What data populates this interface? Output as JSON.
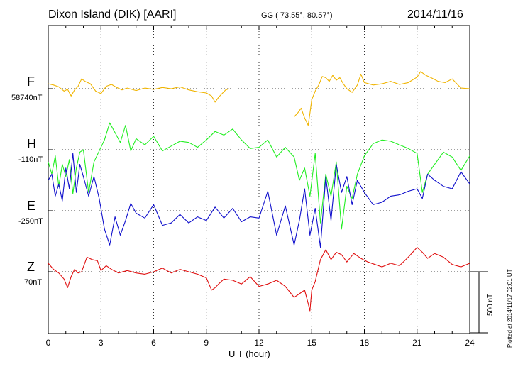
{
  "header": {
    "station": "Dixon Island (DIK)  [AARI]",
    "coordinates": "GG ( 73.55°,  80.57°)",
    "date": "2014/11/16"
  },
  "footer": {
    "plotted": "Plotted at 2014/11/17 02:01  UT"
  },
  "chart_data": {
    "type": "line",
    "title": "Dixon Island (DIK)  [AARI]",
    "xlabel": "U T (hour)",
    "xlim": [
      0,
      24
    ],
    "xticks": [
      "0",
      "3",
      "6",
      "9",
      "12",
      "15",
      "18",
      "21",
      "24"
    ],
    "grid": true,
    "scale_bar": "500 nT",
    "y_units": "nT (relative to baseline, 500 nT scale bar)",
    "series": [
      {
        "name": "F",
        "baseline": "58740nT",
        "color": "#f0b400",
        "offset_index": 0,
        "x": [
          0,
          0.3,
          0.6,
          0.9,
          1.1,
          1.3,
          1.5,
          1.7,
          1.9,
          2.1,
          2.4,
          2.7,
          3.0,
          3.3,
          3.6,
          3.9,
          4.2,
          4.5,
          5.0,
          5.5,
          6.0,
          6.5,
          7.0,
          7.5,
          8.0,
          8.5,
          9.0,
          9.3,
          9.5,
          9.7,
          9.9,
          10.1,
          10.3,
          null,
          14.0,
          14.2,
          14.4,
          14.6,
          14.8,
          14.9,
          15.0,
          15.2,
          15.4,
          15.6,
          15.8,
          16.0,
          16.2,
          16.4,
          16.6,
          16.8,
          17.0,
          17.3,
          17.6,
          17.8,
          18.0,
          18.5,
          19.0,
          19.5,
          20.0,
          20.5,
          21.0,
          21.2,
          21.5,
          21.8,
          22.2,
          22.6,
          23.0,
          23.5,
          24.0
        ],
        "y": [
          40,
          30,
          15,
          -20,
          -5,
          -60,
          -10,
          20,
          80,
          60,
          40,
          -20,
          -40,
          20,
          35,
          10,
          -10,
          5,
          -15,
          5,
          -5,
          10,
          0,
          15,
          -10,
          -25,
          -35,
          -60,
          -110,
          -70,
          -40,
          -10,
          0,
          null,
          -230,
          -200,
          -160,
          -240,
          -300,
          -200,
          -90,
          -20,
          30,
          100,
          90,
          60,
          110,
          70,
          90,
          40,
          0,
          -30,
          30,
          120,
          50,
          30,
          40,
          60,
          35,
          50,
          95,
          140,
          110,
          90,
          60,
          50,
          80,
          5,
          0
        ],
        "gap_hours": [
          10.3,
          14.0
        ]
      },
      {
        "name": "H",
        "baseline": "-110nT",
        "color": "#22ee22",
        "offset_index": 1,
        "x": [
          0,
          0.2,
          0.4,
          0.6,
          0.8,
          1.0,
          1.2,
          1.4,
          1.6,
          1.8,
          2.0,
          2.3,
          2.6,
          2.9,
          3.2,
          3.5,
          3.8,
          4.1,
          4.4,
          4.7,
          5.0,
          5.5,
          6.0,
          6.5,
          7.0,
          7.5,
          8.0,
          8.5,
          9.0,
          9.5,
          10.0,
          10.5,
          11.0,
          11.5,
          12.0,
          12.5,
          13.0,
          13.5,
          14.0,
          14.3,
          14.6,
          14.9,
          15.2,
          15.5,
          15.8,
          16.1,
          16.4,
          16.7,
          17.0,
          17.3,
          17.6,
          18.0,
          18.5,
          19.0,
          19.5,
          20.0,
          20.5,
          21.0,
          21.3,
          21.6,
          22.0,
          22.5,
          23.0,
          23.5,
          24.0
        ],
        "y": [
          -100,
          -200,
          -50,
          -300,
          -120,
          -220,
          -80,
          -360,
          -150,
          -20,
          0,
          -350,
          -100,
          -10,
          80,
          220,
          140,
          60,
          200,
          -10,
          90,
          40,
          110,
          -10,
          30,
          70,
          60,
          20,
          80,
          150,
          120,
          170,
          80,
          10,
          20,
          80,
          -60,
          20,
          -60,
          -250,
          -150,
          -380,
          -30,
          -600,
          -200,
          -380,
          -100,
          -650,
          -300,
          -400,
          -200,
          -50,
          50,
          80,
          70,
          40,
          10,
          -30,
          -350,
          -200,
          -120,
          -20,
          -60,
          -170,
          -50
        ]
      },
      {
        "name": "E",
        "baseline": "-250nT",
        "color": "#1010cc",
        "offset_index": 2,
        "x": [
          0,
          0.2,
          0.4,
          0.6,
          0.8,
          1.0,
          1.2,
          1.4,
          1.6,
          1.8,
          2.0,
          2.3,
          2.6,
          2.9,
          3.2,
          3.5,
          3.8,
          4.1,
          4.4,
          4.7,
          5.0,
          5.5,
          6.0,
          6.5,
          7.0,
          7.5,
          8.0,
          8.5,
          9.0,
          9.5,
          10.0,
          10.5,
          11.0,
          11.5,
          12.0,
          12.5,
          13.0,
          13.5,
          14.0,
          14.3,
          14.6,
          14.9,
          15.2,
          15.5,
          15.8,
          16.1,
          16.4,
          16.7,
          17.0,
          17.3,
          17.6,
          18.0,
          18.5,
          19.0,
          19.5,
          20.0,
          20.5,
          21.0,
          21.3,
          21.6,
          22.0,
          22.5,
          23.0,
          23.5,
          24.0
        ],
        "y": [
          250,
          300,
          120,
          220,
          80,
          350,
          180,
          470,
          150,
          380,
          280,
          120,
          280,
          100,
          -150,
          -280,
          -50,
          -200,
          -80,
          60,
          -20,
          -60,
          50,
          -120,
          -100,
          -30,
          -100,
          -50,
          -80,
          30,
          -60,
          20,
          -90,
          -50,
          -60,
          160,
          -200,
          40,
          -280,
          -80,
          180,
          -200,
          20,
          -300,
          280,
          -80,
          380,
          150,
          280,
          50,
          250,
          150,
          50,
          70,
          120,
          130,
          160,
          180,
          100,
          300,
          250,
          200,
          180,
          320,
          220
        ]
      },
      {
        "name": "Z",
        "baseline": "70nT",
        "color": "#e01010",
        "offset_index": 3,
        "x": [
          0,
          0.3,
          0.6,
          0.9,
          1.1,
          1.3,
          1.5,
          1.7,
          1.9,
          2.2,
          2.5,
          2.8,
          3.0,
          3.3,
          3.6,
          4.0,
          4.5,
          5.0,
          5.5,
          6.0,
          6.5,
          7.0,
          7.5,
          8.0,
          8.5,
          9.0,
          9.3,
          9.5,
          9.7,
          10.0,
          10.5,
          11.0,
          11.5,
          12.0,
          12.5,
          13.0,
          13.5,
          14.0,
          14.3,
          14.6,
          14.8,
          14.9,
          15.0,
          15.2,
          15.5,
          15.8,
          16.1,
          16.4,
          16.7,
          17.0,
          17.4,
          17.8,
          18.2,
          18.6,
          19.0,
          19.5,
          20.0,
          20.5,
          21.0,
          21.3,
          21.6,
          22.0,
          22.5,
          23.0,
          23.5,
          24.0
        ],
        "y": [
          70,
          20,
          -10,
          -60,
          -130,
          -40,
          20,
          -10,
          0,
          120,
          100,
          90,
          10,
          50,
          20,
          -10,
          10,
          -10,
          -20,
          0,
          30,
          -10,
          20,
          0,
          -20,
          -50,
          -150,
          -130,
          -100,
          -60,
          -70,
          -100,
          -40,
          -120,
          -100,
          -70,
          -120,
          -210,
          -180,
          -150,
          -260,
          -320,
          -150,
          -80,
          100,
          180,
          100,
          160,
          140,
          80,
          150,
          110,
          80,
          60,
          40,
          70,
          50,
          120,
          200,
          160,
          110,
          150,
          120,
          60,
          40,
          70
        ]
      }
    ]
  }
}
